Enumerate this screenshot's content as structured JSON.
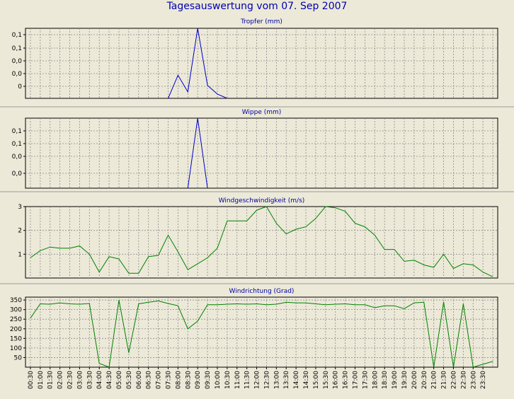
{
  "window": {
    "title": "Tagesauswertung vom 07. Sep 2007"
  },
  "colors": {
    "blue": "#0000cc",
    "green": "#008000",
    "grid": "#8c8c8c",
    "background": "#ece9d8"
  },
  "chart_data": [
    {
      "type": "line",
      "title": "Tropfer (mm)",
      "yticks": [
        "0,1",
        "0,1",
        "0,0",
        "0,0",
        "0"
      ],
      "ylim": [
        0,
        0.13
      ],
      "color": "#0000cc",
      "points": [
        [
          14,
          0
        ],
        [
          15,
          0.043
        ],
        [
          16,
          0.012
        ],
        [
          17,
          0.13
        ],
        [
          18,
          0.024
        ],
        [
          19,
          0.008
        ],
        [
          20,
          0
        ]
      ]
    },
    {
      "type": "line",
      "title": "Wippe (mm)",
      "yticks": [
        "0,1",
        "0,1",
        "0,0",
        "0,0",
        "0"
      ],
      "ylim": [
        0,
        0.13
      ],
      "color": "#0000cc",
      "points": [
        [
          16,
          0
        ],
        [
          17,
          0.13
        ],
        [
          18,
          0
        ]
      ]
    },
    {
      "type": "line",
      "title": "Windgeschwindigkeit (m/s)",
      "yticks": [
        "3",
        "2",
        "1"
      ],
      "ytick_values": [
        3,
        2,
        1
      ],
      "ylim": [
        0,
        3
      ],
      "color": "#008000",
      "points": [
        [
          0,
          0.85
        ],
        [
          1,
          1.15
        ],
        [
          2,
          1.3
        ],
        [
          3,
          1.25
        ],
        [
          4,
          1.25
        ],
        [
          5,
          1.35
        ],
        [
          6,
          1.0
        ],
        [
          7,
          0.25
        ],
        [
          8,
          0.9
        ],
        [
          9,
          0.8
        ],
        [
          10,
          0.2
        ],
        [
          11,
          0.2
        ],
        [
          12,
          0.9
        ],
        [
          13,
          0.95
        ],
        [
          14,
          1.8
        ],
        [
          15,
          1.1
        ],
        [
          16,
          0.35
        ],
        [
          17,
          0.6
        ],
        [
          18,
          0.85
        ],
        [
          19,
          1.25
        ],
        [
          20,
          2.4
        ],
        [
          21,
          2.4
        ],
        [
          22,
          2.4
        ],
        [
          23,
          2.85
        ],
        [
          24,
          3.0
        ],
        [
          25,
          2.3
        ],
        [
          26,
          1.85
        ],
        [
          27,
          2.05
        ],
        [
          28,
          2.15
        ],
        [
          29,
          2.5
        ],
        [
          30,
          3.0
        ],
        [
          31,
          2.95
        ],
        [
          32,
          2.8
        ],
        [
          33,
          2.3
        ],
        [
          34,
          2.15
        ],
        [
          35,
          1.8
        ],
        [
          36,
          1.2
        ],
        [
          37,
          1.2
        ],
        [
          38,
          0.7
        ],
        [
          39,
          0.75
        ],
        [
          40,
          0.55
        ],
        [
          41,
          0.45
        ],
        [
          42,
          1.0
        ],
        [
          43,
          0.4
        ],
        [
          44,
          0.6
        ],
        [
          45,
          0.55
        ],
        [
          46,
          0.25
        ],
        [
          47,
          0.05
        ]
      ]
    },
    {
      "type": "line",
      "title": "Windrichtung (Grad)",
      "yticks": [
        "350",
        "300",
        "250",
        "200",
        "150",
        "100",
        "50"
      ],
      "ytick_values": [
        350,
        300,
        250,
        200,
        150,
        100,
        50
      ],
      "ylim": [
        0,
        365
      ],
      "color": "#008000",
      "x_tick_labels": [
        "00:30",
        "01:00",
        "01:30",
        "02:00",
        "02:30",
        "03:00",
        "03:30",
        "04:00",
        "04:30",
        "05:00",
        "05:30",
        "06:00",
        "06:30",
        "07:00",
        "07:30",
        "08:00",
        "08:30",
        "09:00",
        "09:30",
        "10:00",
        "10:30",
        "11:00",
        "11:30",
        "12:00",
        "12:30",
        "13:00",
        "13:30",
        "14:00",
        "14:30",
        "15:00",
        "15:30",
        "16:00",
        "16:30",
        "17:00",
        "17:30",
        "18:00",
        "18:30",
        "19:00",
        "19:30",
        "20:00",
        "20:30",
        "21:00",
        "21:30",
        "22:00",
        "22:30",
        "23:00",
        "23:30"
      ],
      "points": [
        [
          0,
          255
        ],
        [
          1,
          330
        ],
        [
          2,
          328
        ],
        [
          3,
          335
        ],
        [
          4,
          330
        ],
        [
          5,
          328
        ],
        [
          6,
          332
        ],
        [
          7,
          20
        ],
        [
          8,
          0
        ],
        [
          9,
          350
        ],
        [
          10,
          75
        ],
        [
          11,
          330
        ],
        [
          12,
          338
        ],
        [
          13,
          345
        ],
        [
          14,
          332
        ],
        [
          15,
          320
        ],
        [
          16,
          200
        ],
        [
          17,
          240
        ],
        [
          18,
          325
        ],
        [
          19,
          325
        ],
        [
          20,
          328
        ],
        [
          21,
          330
        ],
        [
          22,
          328
        ],
        [
          23,
          330
        ],
        [
          24,
          325
        ],
        [
          25,
          328
        ],
        [
          26,
          338
        ],
        [
          27,
          335
        ],
        [
          28,
          335
        ],
        [
          29,
          330
        ],
        [
          30,
          325
        ],
        [
          31,
          328
        ],
        [
          32,
          330
        ],
        [
          33,
          325
        ],
        [
          34,
          325
        ],
        [
          35,
          310
        ],
        [
          36,
          320
        ],
        [
          37,
          320
        ],
        [
          38,
          305
        ],
        [
          39,
          335
        ],
        [
          40,
          338
        ],
        [
          41,
          0
        ],
        [
          42,
          340
        ],
        [
          43,
          0
        ],
        [
          44,
          330
        ],
        [
          45,
          0
        ],
        [
          46,
          15
        ],
        [
          47,
          30
        ]
      ]
    }
  ]
}
